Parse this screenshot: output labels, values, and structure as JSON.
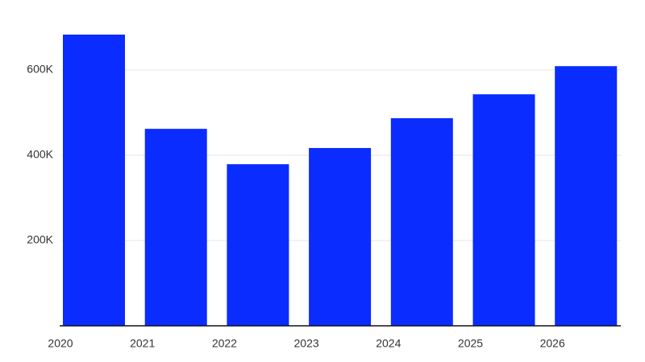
{
  "chart_data": {
    "type": "bar",
    "categories": [
      "2020",
      "2021",
      "2022",
      "2023",
      "2024",
      "2025",
      "2026"
    ],
    "values": [
      683000,
      462000,
      379000,
      417000,
      487000,
      543000,
      609000
    ],
    "color": "#0a2cff",
    "ylim": [
      0,
      700000
    ],
    "yticks": [
      {
        "value": 200000,
        "label": "200K"
      },
      {
        "value": 400000,
        "label": "400K"
      },
      {
        "value": 600000,
        "label": "600K"
      }
    ],
    "grid": true
  }
}
